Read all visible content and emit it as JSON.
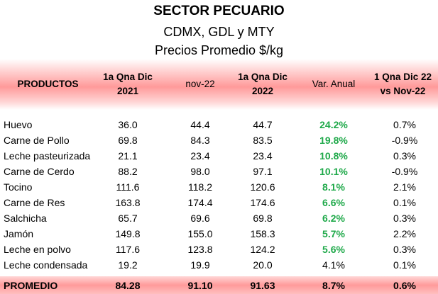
{
  "title": {
    "line1": "SECTOR PECUARIO",
    "line2": "CDMX, GDL y MTY",
    "line3": "Precios Promedio $/kg"
  },
  "headers": {
    "productos": "PRODUCTOS",
    "col1_l1": "1a Qna Dic",
    "col1_l2": "2021",
    "col2": "nov-22",
    "col3_l1": "1a Qna Dic",
    "col3_l2": "2022",
    "col4": "Var. Anual",
    "col5_l1": "1 Qna Dic 22",
    "col5_l2": "vs Nov-22"
  },
  "rows": [
    {
      "name": "Huevo",
      "a": "36.0",
      "b": "44.4",
      "c": "44.7",
      "d": "24.2%",
      "e": "0.7%",
      "highlight": true
    },
    {
      "name": "Carne de Pollo",
      "a": "69.8",
      "b": "84.3",
      "c": "83.5",
      "d": "19.8%",
      "e": "-0.9%",
      "highlight": true
    },
    {
      "name": "Leche pasteurizada",
      "a": "21.1",
      "b": "23.4",
      "c": "23.4",
      "d": "10.8%",
      "e": "0.3%",
      "highlight": true
    },
    {
      "name": "Carne de Cerdo",
      "a": "88.2",
      "b": "98.0",
      "c": "97.1",
      "d": "10.1%",
      "e": "-0.9%",
      "highlight": true
    },
    {
      "name": "Tocino",
      "a": "111.6",
      "b": "118.2",
      "c": "120.6",
      "d": "8.1%",
      "e": "2.1%",
      "highlight": true
    },
    {
      "name": "Carne de Res",
      "a": "163.8",
      "b": "174.4",
      "c": "174.6",
      "d": "6.6%",
      "e": "0.1%",
      "highlight": true
    },
    {
      "name": "Salchicha",
      "a": "65.7",
      "b": "69.6",
      "c": "69.8",
      "d": "6.2%",
      "e": "0.3%",
      "highlight": true
    },
    {
      "name": "Jamón",
      "a": "149.8",
      "b": "155.0",
      "c": "158.3",
      "d": "5.7%",
      "e": "2.2%",
      "highlight": true
    },
    {
      "name": "Leche en polvo",
      "a": "117.6",
      "b": "123.8",
      "c": "124.2",
      "d": "5.6%",
      "e": "0.3%",
      "highlight": true
    },
    {
      "name": "Leche condensada",
      "a": "19.2",
      "b": "19.9",
      "c": "20.0",
      "d": "4.1%",
      "e": "0.1%",
      "highlight": false
    }
  ],
  "footer": {
    "name": "PROMEDIO",
    "a": "84.28",
    "b": "91.10",
    "c": "91.63",
    "d": "8.7%",
    "e": "0.6%"
  },
  "colors": {
    "highlight_green": "#1fa94a",
    "band_red": "#ff9a9a"
  }
}
